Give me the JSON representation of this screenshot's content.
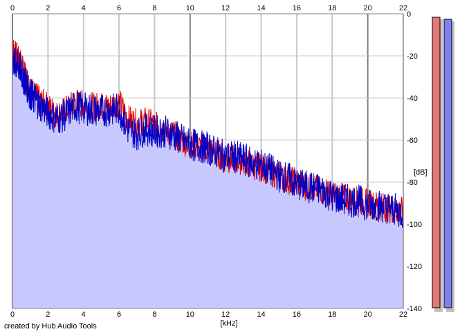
{
  "app": {
    "credit": "created by Hub Audio Tools"
  },
  "chart_data": {
    "type": "line",
    "title": "",
    "xlabel": "[kHz]",
    "ylabel": "[dB]",
    "xlim": [
      0,
      22
    ],
    "ylim": [
      -140,
      0
    ],
    "x_ticks": [
      "0",
      "2",
      "4",
      "6",
      "8",
      "10",
      "12",
      "14",
      "16",
      "18",
      "20",
      "22"
    ],
    "y_ticks": [
      "0",
      "-20",
      "-40",
      "-60",
      "-80",
      "-100",
      "-120",
      "-140"
    ],
    "grid": true,
    "colors": {
      "left_channel": "#e00000",
      "right_channel": "#0000c8",
      "fill": "#c8c8ff",
      "grid": "#c8c8c8",
      "major_grid": "#808080"
    },
    "series": [
      {
        "color": "#e00000",
        "x": [
          0.0,
          0.2,
          0.4,
          0.6,
          0.8,
          1.0,
          1.2,
          1.5,
          2.0,
          2.5,
          3.0,
          3.5,
          4.0,
          4.5,
          5.0,
          5.5,
          6.0,
          6.5,
          7.0,
          7.5,
          8.0,
          8.5,
          9.0,
          9.5,
          10.0,
          10.5,
          11.0,
          11.5,
          12.0,
          12.5,
          13.0,
          13.5,
          14.0,
          14.5,
          15.0,
          15.5,
          16.0,
          16.5,
          17.0,
          17.5,
          18.0,
          18.5,
          19.0,
          19.5,
          20.0,
          20.5,
          21.0,
          21.5,
          22.0
        ],
        "values": [
          -17,
          -20,
          -22,
          -27,
          -32,
          -36,
          -38,
          -41,
          -44,
          -48,
          -46,
          -42,
          -43,
          -44,
          -44,
          -44,
          -42,
          -50,
          -52,
          -51,
          -53,
          -55,
          -57,
          -60,
          -62,
          -63,
          -64,
          -66,
          -69,
          -69,
          -70,
          -72,
          -73,
          -75,
          -77,
          -79,
          -80,
          -82,
          -83,
          -84,
          -86,
          -87,
          -88,
          -89,
          -90,
          -91,
          -92,
          -93,
          -94
        ]
      },
      {
        "color": "#0000c8",
        "x": [
          0.0,
          0.2,
          0.4,
          0.6,
          0.8,
          1.0,
          1.2,
          1.5,
          2.0,
          2.5,
          3.0,
          3.5,
          4.0,
          4.5,
          5.0,
          5.5,
          6.0,
          6.5,
          7.0,
          7.5,
          8.0,
          8.5,
          9.0,
          9.5,
          10.0,
          10.5,
          11.0,
          11.5,
          12.0,
          12.5,
          13.0,
          13.5,
          14.0,
          14.5,
          15.0,
          15.5,
          16.0,
          16.5,
          17.0,
          17.5,
          18.0,
          18.5,
          19.0,
          19.5,
          20.0,
          20.5,
          21.0,
          21.5,
          22.0
        ],
        "values": [
          -22,
          -24,
          -25,
          -30,
          -34,
          -38,
          -40,
          -43,
          -47,
          -50,
          -48,
          -44,
          -45,
          -46,
          -46,
          -46,
          -45,
          -55,
          -57,
          -55,
          -56,
          -56,
          -57,
          -60,
          -62,
          -63,
          -64,
          -66,
          -68,
          -68,
          -69,
          -71,
          -72,
          -74,
          -77,
          -78,
          -81,
          -82,
          -83,
          -84,
          -87,
          -88,
          -89,
          -89,
          -91,
          -91,
          -92,
          -93,
          -95
        ]
      }
    ]
  },
  "meters": {
    "left_color": "#e87878",
    "right_color": "#8080f0",
    "shadow_color": "#c0c0c0"
  }
}
